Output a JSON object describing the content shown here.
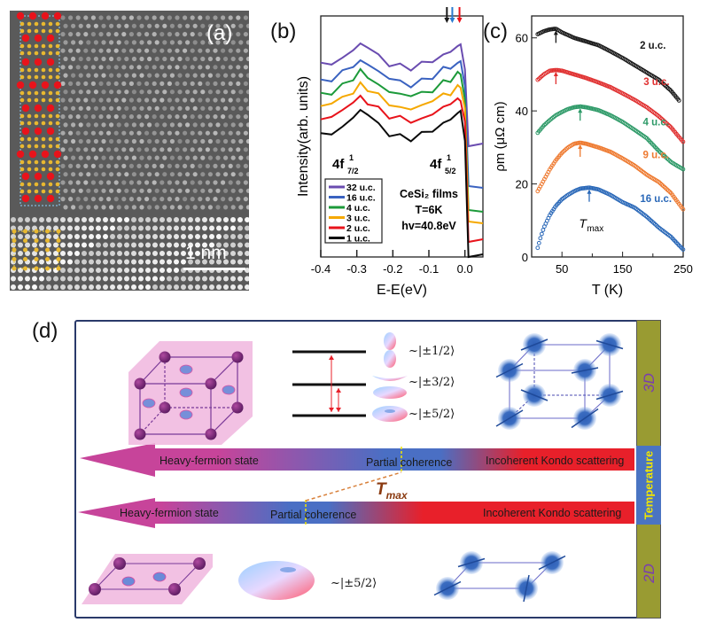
{
  "panel_labels": {
    "a": "(a)",
    "b": "(b)",
    "c": "(c)",
    "d": "(d)"
  },
  "panel_a": {
    "scale_bar_label": "1 nm",
    "atom_colors": {
      "ce": "#e8131b",
      "si": "#e8b830",
      "unit_cell": "#8fd3ff",
      "substrate_cell": "#f0d040"
    }
  },
  "chart_data": [
    {
      "panel": "b",
      "type": "line",
      "title": "",
      "xlabel": "E-E_F(eV)",
      "ylabel": "Intensity(arb. units)",
      "xlim": [
        -0.4,
        0.05
      ],
      "xticks": [
        "-0.4",
        "-0.3",
        "-0.2",
        "-0.1",
        "0.0"
      ],
      "grid": false,
      "legend": {
        "placement": "bottom-left"
      },
      "annotations": {
        "peak_left": "4f",
        "peak_left_sub": "7/2",
        "peak_left_sup": "1",
        "peak_right": "4f",
        "peak_right_sub": "5/2",
        "peak_right_sup": "1",
        "info_lines": [
          "CeSi₂ films",
          "T=6K",
          "hv=40.8eV"
        ],
        "arrows": [
          {
            "x": -0.05,
            "color": "#1a1a1a"
          },
          {
            "x": -0.035,
            "color": "#2a7bd0"
          },
          {
            "x": -0.015,
            "color": "#e8131b"
          }
        ]
      },
      "series": [
        {
          "name": "32 u.c.",
          "color": "#6a4cb0",
          "offset": 5
        },
        {
          "name": "16 u.c.",
          "color": "#3a62c0",
          "offset": 4
        },
        {
          "name": "4 u.c.",
          "color": "#1c9a3a",
          "offset": 3
        },
        {
          "name": "3 u.c.",
          "color": "#f5a800",
          "offset": 2
        },
        {
          "name": "2 u.c.",
          "color": "#e8131b",
          "offset": 1
        },
        {
          "name": "1 u.c.",
          "color": "#0a0a0a",
          "offset": 0
        }
      ],
      "spectrum_shape": {
        "x": [
          -0.4,
          -0.37,
          -0.34,
          -0.31,
          -0.29,
          -0.27,
          -0.24,
          -0.21,
          -0.18,
          -0.15,
          -0.12,
          -0.09,
          -0.06,
          -0.04,
          -0.02,
          -0.012,
          0.0,
          0.01,
          0.05
        ],
        "y": [
          0.35,
          0.45,
          0.6,
          0.85,
          1.0,
          0.9,
          0.65,
          0.45,
          0.35,
          0.3,
          0.38,
          0.52,
          0.7,
          0.8,
          0.92,
          1.0,
          0.2,
          -0.6,
          -0.62
        ]
      }
    },
    {
      "panel": "c",
      "type": "scatter",
      "title": "",
      "xlabel": "T (K)",
      "ylabel": "ρm (μΩ cm)",
      "xlim": [
        0,
        250
      ],
      "ylim": [
        0,
        66
      ],
      "xticks": [
        "50",
        "150",
        "250"
      ],
      "xtick_values": [
        50,
        150,
        250
      ],
      "yticks": [
        "0",
        "20",
        "40",
        "60"
      ],
      "ytick_values": [
        0,
        20,
        40,
        60
      ],
      "grid": false,
      "annotations": {
        "tmax_label": "T",
        "tmax_sub": "max"
      },
      "series": [
        {
          "name": "2 u.c.",
          "color": "#1a1a1a",
          "tmax": 40,
          "x": [
            10,
            20,
            30,
            40,
            50,
            70,
            90,
            110,
            130,
            150,
            170,
            190,
            210,
            230,
            245
          ],
          "y": [
            61,
            61.8,
            62.3,
            62.5,
            61.5,
            60,
            59,
            58,
            56.3,
            54.5,
            52.5,
            50.5,
            48.5,
            45.5,
            42.5
          ]
        },
        {
          "name": "3 u.c.",
          "color": "#e03030",
          "tmax": 40,
          "x": [
            10,
            20,
            30,
            40,
            50,
            70,
            90,
            110,
            130,
            150,
            170,
            190,
            210,
            230,
            250
          ],
          "y": [
            48.5,
            50,
            51,
            51.2,
            51,
            50,
            49,
            47.8,
            46.5,
            44.8,
            43,
            41,
            38.5,
            35.5,
            31.5
          ]
        },
        {
          "name": "4 u.c.",
          "color": "#2e9a68",
          "tmax": 80,
          "x": [
            10,
            20,
            30,
            40,
            50,
            60,
            70,
            80,
            90,
            110,
            130,
            150,
            170,
            190,
            210,
            230,
            250
          ],
          "y": [
            34,
            36,
            37.5,
            38.8,
            39.7,
            40.5,
            41,
            41.2,
            41,
            40.2,
            38.8,
            37,
            34.8,
            32.5,
            29,
            26,
            24
          ]
        },
        {
          "name": "9 u.c.",
          "color": "#ee7a30",
          "tmax": 80,
          "x": [
            10,
            20,
            30,
            40,
            50,
            60,
            70,
            80,
            90,
            110,
            130,
            150,
            170,
            190,
            210,
            230,
            250
          ],
          "y": [
            18,
            21,
            24,
            26.5,
            28.5,
            30,
            31,
            31.3,
            31,
            30,
            28.8,
            27,
            25,
            22.5,
            20.5,
            17.5,
            13
          ]
        },
        {
          "name": "16 u.c.",
          "color": "#2a68b8",
          "tmax": 95,
          "x": [
            10,
            15,
            20,
            30,
            40,
            50,
            60,
            70,
            80,
            95,
            110,
            130,
            150,
            170,
            190,
            210,
            230,
            250
          ],
          "y": [
            2.5,
            5.5,
            8,
            11.5,
            14,
            15.8,
            17,
            18,
            18.7,
            19,
            18.5,
            17,
            15,
            13.5,
            11,
            8,
            5.5,
            2
          ]
        }
      ]
    }
  ],
  "panel_d": {
    "kets": [
      "~|±1/2⟩",
      "~|±3/2⟩",
      "~|±5/2⟩"
    ],
    "ket_2d": "~|±5/2⟩",
    "side_labels": {
      "top": "3D",
      "middle": "Temperature",
      "bottom": "2D"
    },
    "arrow_3d": {
      "heavy_fermion": "Heavy-fermion state",
      "partial_coherence": "Partial coherence",
      "incoherent": "Incoherent Kondo scattering"
    },
    "arrow_2d": {
      "heavy_fermion": "Heavy-fermion state",
      "partial_coherence": "Partial coherence",
      "incoherent": "Incoherent Kondo scattering"
    },
    "tmax_label": "T",
    "tmax_sub": "max",
    "colors": {
      "heavy": "#c7449a",
      "partial": "#4a6fc4",
      "incoherent": "#e8202a",
      "sidebar": "#999b32",
      "temperature_block": "#4a74c2",
      "temperature_text": "#f2e600",
      "dim_text": "#7a3db0",
      "tmax": "#8a3a10"
    }
  }
}
